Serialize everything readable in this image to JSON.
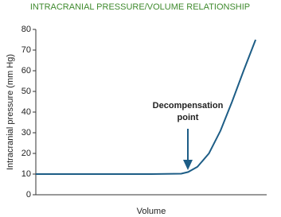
{
  "chart_data": {
    "type": "line",
    "title": "INTRACRANIAL PRESSURE/VOLUME RELATIONSHIP",
    "x_label": "Volume",
    "y_label": "Intracranial pressure (mm Hg)",
    "annotation": [
      "Decompensation",
      "point"
    ],
    "x": [
      0,
      50,
      63,
      66,
      70,
      75,
      80,
      85,
      90,
      95.2
    ],
    "series": [
      {
        "color": "#1d5d86",
        "values": [
          10,
          10,
          10.2,
          11,
          13.5,
          20,
          31,
          45,
          60,
          75
        ]
      }
    ],
    "xlim": [
      0,
      100
    ],
    "ylim": [
      0,
      80
    ],
    "yticks": [
      0,
      10,
      20,
      30,
      40,
      50,
      60,
      70,
      80
    ],
    "grid": false
  }
}
